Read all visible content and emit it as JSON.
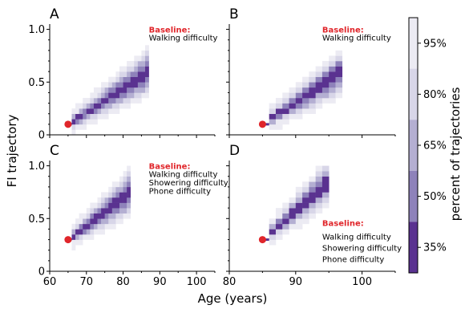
{
  "figure": {
    "ylabel": "FI trajectory",
    "xlabel": "Age (years)",
    "colorbar_label": "percent of trajectories",
    "colorbar_ticks": [
      "95%",
      "80%",
      "65%",
      "50%",
      "35%"
    ],
    "colorbar_colors": [
      "#ecebf3",
      "#d8d6e8",
      "#b4afd2",
      "#8e82ba",
      "#5a3290"
    ],
    "baseline_color": "#e0262b",
    "marker_color": "#e0262b"
  },
  "chart_data": [
    {
      "type": "heatmap",
      "panel": "A",
      "baseline_title": "Baseline:",
      "baseline_lines": [
        "Walking difficulty"
      ],
      "start": {
        "age": 65,
        "fi": 0.1
      },
      "band": {
        "a0": 65,
        "a1": 87,
        "fi_start": 0.1,
        "fi_end": 0.6
      },
      "xlim": [
        60,
        105
      ],
      "ylim": [
        0,
        1.05
      ],
      "xticks": [],
      "yticks": [
        "0",
        "0.5",
        "1.0"
      ]
    },
    {
      "type": "heatmap",
      "panel": "B",
      "baseline_title": "Baseline:",
      "baseline_lines": [
        "Walking difficulty"
      ],
      "start": {
        "age": 85,
        "fi": 0.1
      },
      "band": {
        "a0": 85,
        "a1": 97,
        "fi_start": 0.1,
        "fi_end": 0.6
      },
      "xlim": [
        80,
        105
      ],
      "ylim": [
        0,
        1.05
      ],
      "xticks": [],
      "yticks": []
    },
    {
      "type": "heatmap",
      "panel": "C",
      "baseline_title": "Baseline:",
      "baseline_lines": [
        "Walking difficulty",
        "Showering difficulty",
        "Phone difficulty"
      ],
      "start": {
        "age": 65,
        "fi": 0.3
      },
      "band": {
        "a0": 65,
        "a1": 82,
        "fi_start": 0.3,
        "fi_end": 0.75
      },
      "xlim": [
        60,
        105
      ],
      "ylim": [
        0,
        1.05
      ],
      "xticks": [
        "60",
        "70",
        "80",
        "90",
        "100"
      ],
      "yticks": [
        "0",
        "0.5",
        "1.0"
      ]
    },
    {
      "type": "heatmap",
      "panel": "D",
      "baseline_title": "Baseline:",
      "baseline_lines": [
        "Walking difficulty",
        "Showering difficulty",
        "Phone difficulty"
      ],
      "start": {
        "age": 85,
        "fi": 0.3
      },
      "band": {
        "a0": 85,
        "a1": 95,
        "fi_start": 0.3,
        "fi_end": 0.85
      },
      "xlim": [
        80,
        105
      ],
      "ylim": [
        0,
        1.05
      ],
      "xticks": [
        "80",
        "90",
        "100"
      ],
      "yticks": []
    }
  ]
}
